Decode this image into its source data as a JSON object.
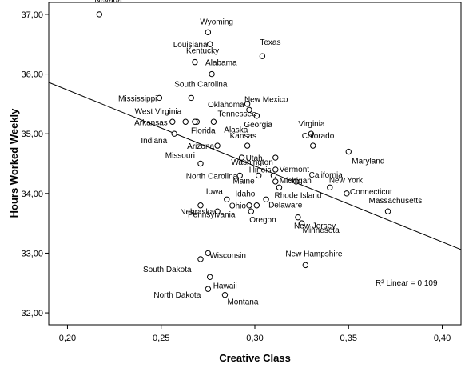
{
  "chart_data": {
    "type": "scatter",
    "xlabel": "Creative Class",
    "ylabel": "Hours Worked Weekly",
    "xlim": [
      0.19,
      0.41
    ],
    "ylim": [
      31.8,
      37.2
    ],
    "x_ticks": [
      0.2,
      0.25,
      0.3,
      0.35,
      0.4
    ],
    "y_ticks": [
      32.0,
      33.0,
      34.0,
      35.0,
      36.0,
      37.0
    ],
    "x_tick_labels": [
      "0,20",
      "0,25",
      "0,30",
      "0,35",
      "0,40"
    ],
    "y_tick_labels": [
      "32,00",
      "33,00",
      "34,00",
      "35,00",
      "36,00",
      "37,00"
    ],
    "annotation": "R² Linear = 0,109",
    "fit_line": {
      "x": [
        0.19,
        0.41
      ],
      "y": [
        35.86,
        33.06
      ]
    },
    "points": [
      {
        "label": "Nevada",
        "x": 0.217,
        "y": 37.0
      },
      {
        "label": "Wyoming",
        "x": 0.275,
        "y": 36.7
      },
      {
        "label": "Louisiana",
        "x": 0.276,
        "y": 36.5
      },
      {
        "label": "Texas",
        "x": 0.304,
        "y": 36.3
      },
      {
        "label": "Kentucky",
        "x": 0.268,
        "y": 36.2
      },
      {
        "label": "Alabama",
        "x": 0.277,
        "y": 36.0
      },
      {
        "label": "Mississippi",
        "x": 0.249,
        "y": 35.6
      },
      {
        "label": "South Carolina",
        "x": 0.266,
        "y": 35.6
      },
      {
        "label": "Oklahoma",
        "x": 0.296,
        "y": 35.5
      },
      {
        "label": "New Mexico",
        "x": 0.297,
        "y": 35.4
      },
      {
        "label": "West Virginia",
        "x": 0.263,
        "y": 35.2
      },
      {
        "label": "Tennessee",
        "x": 0.278,
        "y": 35.2
      },
      {
        "label": "Georgia",
        "x": 0.301,
        "y": 35.3
      },
      {
        "label": "Arkansas",
        "x": 0.256,
        "y": 35.2
      },
      {
        "label": "Alaska",
        "x": 0.269,
        "y": 35.2
      },
      {
        "label": "Virginia",
        "x": 0.33,
        "y": 35.0
      },
      {
        "label": "Florida",
        "x": 0.268,
        "y": 35.2
      },
      {
        "label": "Indiana",
        "x": 0.257,
        "y": 35.0
      },
      {
        "label": "Colorado",
        "x": 0.331,
        "y": 34.8
      },
      {
        "label": "Kansas",
        "x": 0.296,
        "y": 34.8
      },
      {
        "label": "Arizona",
        "x": 0.28,
        "y": 34.8
      },
      {
        "label": "Maryland",
        "x": 0.35,
        "y": 34.7
      },
      {
        "label": "Washington",
        "x": 0.311,
        "y": 34.6
      },
      {
        "label": "Missouri",
        "x": 0.271,
        "y": 34.5
      },
      {
        "label": "Utah",
        "x": 0.293,
        "y": 34.6
      },
      {
        "label": "Vermont",
        "x": 0.311,
        "y": 34.4
      },
      {
        "label": "Illinois",
        "x": 0.31,
        "y": 34.3
      },
      {
        "label": "California",
        "x": 0.322,
        "y": 34.2
      },
      {
        "label": "North Carolina",
        "x": 0.292,
        "y": 34.3
      },
      {
        "label": "Michigan",
        "x": 0.311,
        "y": 34.2
      },
      {
        "label": "Maine",
        "x": 0.302,
        "y": 34.3
      },
      {
        "label": "New York",
        "x": 0.34,
        "y": 34.1
      },
      {
        "label": "Connecticut",
        "x": 0.349,
        "y": 34.0
      },
      {
        "label": "Iowa",
        "x": 0.285,
        "y": 33.9
      },
      {
        "label": "Idaho",
        "x": 0.301,
        "y": 33.8
      },
      {
        "label": "Rhode Island",
        "x": 0.313,
        "y": 34.1
      },
      {
        "label": "Massachusetts",
        "x": 0.371,
        "y": 33.7
      },
      {
        "label": "Nebraska",
        "x": 0.28,
        "y": 33.7
      },
      {
        "label": "Ohio",
        "x": 0.297,
        "y": 33.8
      },
      {
        "label": "Delaware",
        "x": 0.306,
        "y": 33.9
      },
      {
        "label": "Oregon",
        "x": 0.298,
        "y": 33.7
      },
      {
        "label": "New Jersey",
        "x": 0.323,
        "y": 33.6
      },
      {
        "label": "Minnesota",
        "x": 0.325,
        "y": 33.5
      },
      {
        "label": "Pennsylvania",
        "x": 0.271,
        "y": 33.8
      },
      {
        "label": "Wisconsin",
        "x": 0.275,
        "y": 33.0
      },
      {
        "label": "South Dakota",
        "x": 0.271,
        "y": 32.9
      },
      {
        "label": "New Hampshire",
        "x": 0.327,
        "y": 32.8
      },
      {
        "label": "Hawaii",
        "x": 0.276,
        "y": 32.6
      },
      {
        "label": "North Dakota",
        "x": 0.275,
        "y": 32.4
      },
      {
        "label": "Montana",
        "x": 0.284,
        "y": 32.3
      }
    ]
  }
}
